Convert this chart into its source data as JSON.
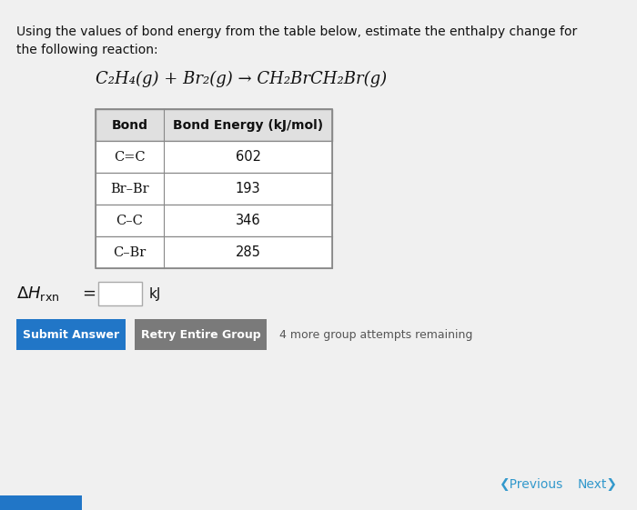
{
  "background_color": "#f0f0f0",
  "intro_line1": "Using the values of bond energy from the table below, estimate the enthalpy change for",
  "intro_line2": "the following reaction:",
  "reaction_text": "C₂H₄(g) + Br₂(g) → CH₂BrCH₂Br(g)",
  "table_headers": [
    "Bond",
    "Bond Energy (kJ/mol)"
  ],
  "table_rows": [
    [
      "C=C",
      "602"
    ],
    [
      "Br–Br",
      "193"
    ],
    [
      "C–C",
      "346"
    ],
    [
      "C–Br",
      "285"
    ]
  ],
  "submit_btn_text": "Submit Answer",
  "submit_btn_color": "#2176c7",
  "retry_btn_text": "Retry Entire Group",
  "retry_btn_color": "#7a7a7a",
  "attempts_text": "4 more group attempts remaining",
  "prev_text": "❮Previous",
  "next_text": "Next❯",
  "prev_next_color": "#3399cc",
  "nav_text_color": "#555555"
}
